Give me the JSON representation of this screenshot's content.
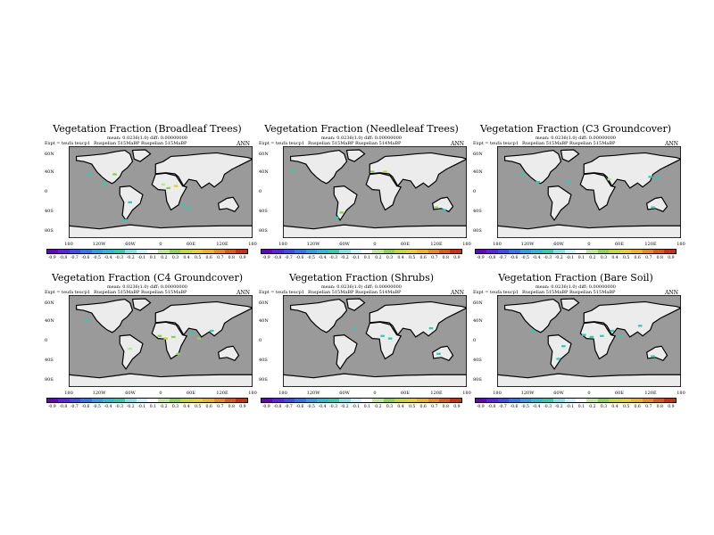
{
  "panels": [
    {
      "title": "Vegetation Fraction (Broadleaf Trees)",
      "mean": "mean: 0.0236(1.0) diff: 0.00000000",
      "expt": "Expt = teufa teucp1",
      "runs": "Ruspelian   515MaBP  Ruspelian  515MaBP",
      "season": "ANN"
    },
    {
      "title": "Vegetation Fraction (Needleleaf Trees)",
      "mean": "mean: 0.0236(1.0) diff: 0.00000000",
      "expt": "Expt = teufa teucp1",
      "runs": "Ruspelian   515MaBP  Ruspelian  514MaBP",
      "season": "ANN"
    },
    {
      "title": "Vegetation Fraction (C3 Groundcover)",
      "mean": "mean: 0.0236(1.0) diff: 0.00000000",
      "expt": "Expt = teufa teucp1",
      "runs": "Ruspelian   515MaBP  Ruspelian  515MaBP",
      "season": "ANN"
    },
    {
      "title": "Vegetation Fraction (C4 Groundcover)",
      "mean": "mean: 0.0236(1.0) diff: 0.00000000",
      "expt": "Expt = teufa teucp1",
      "runs": "Ruspelian   515MaBP  Ruspelian  515MaBP",
      "season": "ANN"
    },
    {
      "title": "Vegetation Fraction (Shrubs)",
      "mean": "mean: 0.0236(1.0) diff: 0.00000000",
      "expt": "Expt = teufa teucp1",
      "runs": "Ruspelian   515MaBP  Ruspelian  514MaBP",
      "season": "ANN"
    },
    {
      "title": "Vegetation Fraction (Bare Soil)",
      "mean": "mean: 0.0236(1.0) diff: 0.00000000",
      "expt": "Expt = teufa teucp1",
      "runs": "Ruspelian   515MaBP  Ruspelian  515MaBP",
      "season": "ANN"
    }
  ],
  "axes": {
    "lat_ticks": [
      "60N",
      "40N",
      "0",
      "40S",
      "80S"
    ],
    "lon_ticks_a": [
      "180",
      "120W",
      "60W",
      "0",
      "60E",
      "120E",
      "180"
    ],
    "lon_ticks_b": [
      "180",
      "120W",
      "60W",
      "0",
      "60E",
      "120E",
      "180"
    ]
  },
  "colorbar": {
    "labels": [
      "-0.9",
      "-0.8",
      "-0.7",
      "-0.6",
      "-0.5",
      "-0.4",
      "-0.3",
      "-0.2",
      "-0.1",
      "0.1",
      "0.2",
      "0.3",
      "0.4",
      "0.5",
      "0.6",
      "0.7",
      "0.8",
      "0.9"
    ],
    "colors": [
      "#6a00c8",
      "#5a22e6",
      "#3b4cf0",
      "#2c78ee",
      "#2aa0e8",
      "#22c0d8",
      "#28d0b0",
      "#7ee0e8",
      "#c8f0f8",
      "#ffffff",
      "#b8e890",
      "#8cd24a",
      "#c8d828",
      "#e8d020",
      "#f0b418",
      "#ec8a14",
      "#e05a10",
      "#d42c0c"
    ]
  },
  "map_colors": {
    "ocean": "#9a9a9a",
    "land": "#ececec",
    "coast": "#000000"
  },
  "anomalies": [
    [
      {
        "lon": -140,
        "lat": 35,
        "color": "#28d0b0"
      },
      {
        "lon": -110,
        "lat": 15,
        "color": "#28d0b0"
      },
      {
        "lon": -90,
        "lat": 35,
        "color": "#8cd24a"
      },
      {
        "lon": 5,
        "lat": 15,
        "color": "#b8e890"
      },
      {
        "lon": 15,
        "lat": 8,
        "color": "#8cd24a"
      },
      {
        "lon": 30,
        "lat": 12,
        "color": "#e8d020"
      },
      {
        "lon": -60,
        "lat": -20,
        "color": "#28d0b0"
      },
      {
        "lon": 45,
        "lat": -25,
        "color": "#28d0b0"
      },
      {
        "lon": 55,
        "lat": -32,
        "color": "#28d0b0"
      },
      {
        "lon": -70,
        "lat": -55,
        "color": "#28d0b0"
      }
    ],
    [
      {
        "lon": -160,
        "lat": 42,
        "color": "#28d0b0"
      },
      {
        "lon": -5,
        "lat": 40,
        "color": "#8cd24a"
      },
      {
        "lon": 20,
        "lat": 40,
        "color": "#c8d828"
      },
      {
        "lon": -65,
        "lat": -40,
        "color": "#8cd24a"
      },
      {
        "lon": -75,
        "lat": -50,
        "color": "#28d0b0"
      },
      {
        "lon": 120,
        "lat": -30,
        "color": "#8cd24a"
      },
      {
        "lon": 135,
        "lat": -35,
        "color": "#28d0b0"
      }
    ],
    [
      {
        "lon": -130,
        "lat": 35,
        "color": "#28d0b0"
      },
      {
        "lon": -100,
        "lat": 20,
        "color": "#28d0b0"
      },
      {
        "lon": -40,
        "lat": 20,
        "color": "#28d0b0"
      },
      {
        "lon": 40,
        "lat": 25,
        "color": "#b8e890"
      },
      {
        "lon": 120,
        "lat": 30,
        "color": "#28d0b0"
      },
      {
        "lon": 135,
        "lat": 28,
        "color": "#28d0b0"
      },
      {
        "lon": 125,
        "lat": -30,
        "color": "#28d0b0"
      }
    ],
    [
      {
        "lon": -145,
        "lat": 40,
        "color": "#28d0b0"
      },
      {
        "lon": -60,
        "lat": -15,
        "color": "#b8e890"
      },
      {
        "lon": -2,
        "lat": 10,
        "color": "#8cd24a"
      },
      {
        "lon": 10,
        "lat": 5,
        "color": "#c8d828"
      },
      {
        "lon": 25,
        "lat": 8,
        "color": "#8cd24a"
      },
      {
        "lon": 35,
        "lat": -25,
        "color": "#8cd24a"
      },
      {
        "lon": 60,
        "lat": 15,
        "color": "#28d0b0"
      },
      {
        "lon": 75,
        "lat": 5,
        "color": "#8cd24a"
      },
      {
        "lon": 100,
        "lat": 20,
        "color": "#28d0b0"
      }
    ],
    [
      {
        "lon": -40,
        "lat": 25,
        "color": "#28d0b0"
      },
      {
        "lon": 15,
        "lat": 10,
        "color": "#28d0b0"
      },
      {
        "lon": 30,
        "lat": 5,
        "color": "#28d0b0"
      },
      {
        "lon": 110,
        "lat": 25,
        "color": "#28d0b0"
      },
      {
        "lon": 125,
        "lat": -25,
        "color": "#28d0b0"
      }
    ],
    [
      {
        "lon": -110,
        "lat": 20,
        "color": "#28d0b0"
      },
      {
        "lon": -50,
        "lat": -10,
        "color": "#28d0b0"
      },
      {
        "lon": -10,
        "lat": 12,
        "color": "#28d0b0"
      },
      {
        "lon": 5,
        "lat": 8,
        "color": "#28d0b0"
      },
      {
        "lon": 25,
        "lat": 10,
        "color": "#28d0b0"
      },
      {
        "lon": 45,
        "lat": 20,
        "color": "#28d0b0"
      },
      {
        "lon": 60,
        "lat": 10,
        "color": "#28d0b0"
      },
      {
        "lon": 100,
        "lat": 30,
        "color": "#28d0b0"
      },
      {
        "lon": -60,
        "lat": -35,
        "color": "#28d0b0"
      },
      {
        "lon": 125,
        "lat": -30,
        "color": "#28d0b0"
      }
    ]
  ]
}
